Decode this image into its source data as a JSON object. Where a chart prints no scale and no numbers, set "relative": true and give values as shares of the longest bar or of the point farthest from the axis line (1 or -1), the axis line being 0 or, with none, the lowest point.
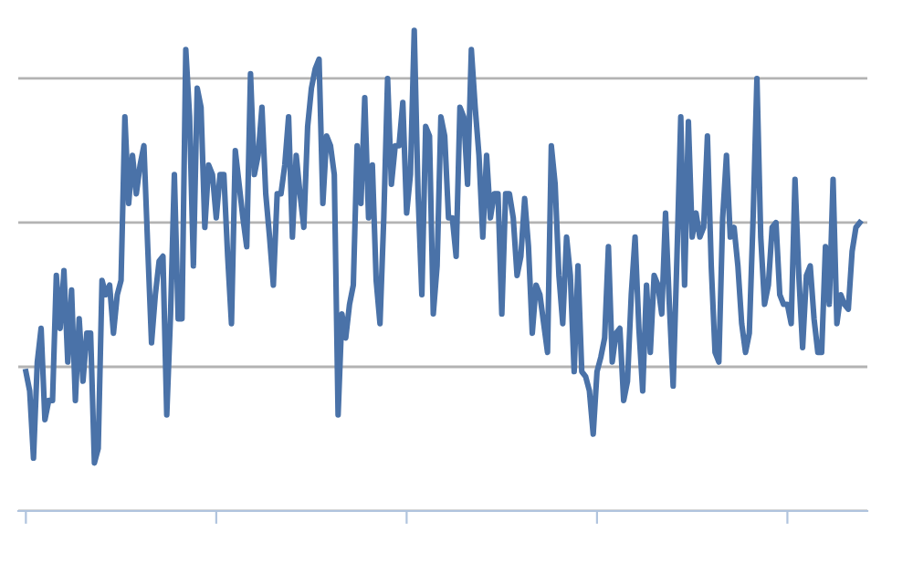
{
  "chart_data": {
    "type": "line",
    "relative": true,
    "grid": "y",
    "tick_labels": false,
    "legend": false,
    "marker": "none",
    "line_style": "solid",
    "categories": [
      null,
      null,
      null,
      null,
      null,
      null,
      null,
      null,
      null,
      null,
      null,
      null,
      null,
      null,
      null,
      null,
      null,
      null,
      null,
      null,
      null,
      null,
      null,
      null,
      null,
      null,
      null,
      null,
      null,
      null,
      null,
      null,
      null,
      null,
      null,
      null,
      null,
      null,
      null,
      null,
      null,
      null,
      null,
      null,
      null,
      null,
      null,
      null,
      null,
      null,
      null,
      null,
      null,
      null,
      null,
      null,
      null,
      null,
      null,
      null,
      null,
      null,
      null,
      null,
      null,
      null,
      null,
      null,
      null,
      null,
      null,
      null,
      null,
      null,
      null,
      null,
      null,
      null,
      null,
      null,
      null,
      null,
      null,
      null,
      null,
      null,
      null,
      null,
      null,
      null,
      null,
      null,
      null,
      null,
      null,
      null,
      null,
      null,
      null,
      null,
      null,
      null,
      null,
      null,
      null,
      null,
      null,
      null,
      null,
      null,
      null,
      null,
      null,
      null,
      null,
      null,
      null,
      null,
      null,
      null,
      null,
      null,
      null,
      null,
      null,
      null,
      null,
      null,
      null,
      null,
      null,
      null,
      null,
      null,
      null,
      null,
      null,
      null,
      null,
      null,
      null,
      null,
      null,
      null,
      null,
      null,
      null,
      null,
      null,
      null,
      null,
      null,
      null,
      null,
      null,
      null,
      null,
      null,
      null,
      null,
      null,
      null,
      null,
      null,
      null,
      null,
      null,
      null,
      null,
      null,
      null,
      null,
      null,
      null,
      null,
      null,
      null,
      null,
      null,
      null,
      null,
      null,
      null,
      null,
      null,
      null,
      null,
      null,
      null,
      null,
      null,
      null,
      null,
      null,
      null,
      null,
      null,
      null,
      null,
      null,
      null,
      null,
      null,
      null,
      null,
      null,
      null,
      null,
      null,
      null,
      null,
      null,
      null,
      null,
      null,
      null,
      null,
      null,
      null,
      null
    ],
    "series": [
      {
        "color": "#4a72a8",
        "values": [
          0.29,
          0.25,
          0.11,
          0.31,
          0.38,
          0.19,
          0.23,
          0.23,
          0.49,
          0.38,
          0.5,
          0.31,
          0.46,
          0.23,
          0.4,
          0.27,
          0.37,
          0.37,
          0.1,
          0.13,
          0.48,
          0.45,
          0.47,
          0.37,
          0.45,
          0.48,
          0.82,
          0.64,
          0.74,
          0.66,
          0.72,
          0.76,
          0.55,
          0.35,
          0.45,
          0.52,
          0.53,
          0.2,
          0.41,
          0.7,
          0.4,
          0.4,
          0.96,
          0.82,
          0.51,
          0.88,
          0.84,
          0.59,
          0.72,
          0.7,
          0.61,
          0.7,
          0.7,
          0.53,
          0.39,
          0.75,
          0.68,
          0.61,
          0.55,
          0.91,
          0.7,
          0.74,
          0.84,
          0.66,
          0.57,
          0.47,
          0.66,
          0.66,
          0.72,
          0.82,
          0.57,
          0.74,
          0.66,
          0.59,
          0.8,
          0.88,
          0.92,
          0.94,
          0.64,
          0.78,
          0.76,
          0.7,
          0.2,
          0.41,
          0.36,
          0.43,
          0.47,
          0.76,
          0.64,
          0.86,
          0.61,
          0.72,
          0.48,
          0.39,
          0.61,
          0.9,
          0.68,
          0.76,
          0.76,
          0.85,
          0.62,
          0.7,
          1,
          0.66,
          0.45,
          0.8,
          0.78,
          0.41,
          0.51,
          0.82,
          0.78,
          0.61,
          0.61,
          0.53,
          0.84,
          0.82,
          0.68,
          0.96,
          0.84,
          0.74,
          0.57,
          0.74,
          0.61,
          0.66,
          0.66,
          0.41,
          0.66,
          0.66,
          0.61,
          0.49,
          0.53,
          0.65,
          0.55,
          0.37,
          0.47,
          0.45,
          0.39,
          0.33,
          0.76,
          0.68,
          0.49,
          0.39,
          0.57,
          0.49,
          0.29,
          0.51,
          0.29,
          0.28,
          0.25,
          0.16,
          0.29,
          0.32,
          0.36,
          0.55,
          0.31,
          0.37,
          0.38,
          0.23,
          0.27,
          0.45,
          0.57,
          0.38,
          0.25,
          0.47,
          0.33,
          0.49,
          0.47,
          0.41,
          0.62,
          0.43,
          0.26,
          0.53,
          0.82,
          0.47,
          0.81,
          0.57,
          0.62,
          0.57,
          0.59,
          0.78,
          0.51,
          0.33,
          0.31,
          0.61,
          0.74,
          0.57,
          0.59,
          0.51,
          0.39,
          0.33,
          0.37,
          0.61,
          0.9,
          0.57,
          0.43,
          0.47,
          0.59,
          0.6,
          0.45,
          0.43,
          0.43,
          0.39,
          0.69,
          0.49,
          0.34,
          0.49,
          0.51,
          0.4,
          0.33,
          0.33,
          0.55,
          0.43,
          0.69,
          0.39,
          0.45,
          0.43,
          0.42,
          0.54,
          0.59,
          0.6
        ]
      }
    ]
  }
}
